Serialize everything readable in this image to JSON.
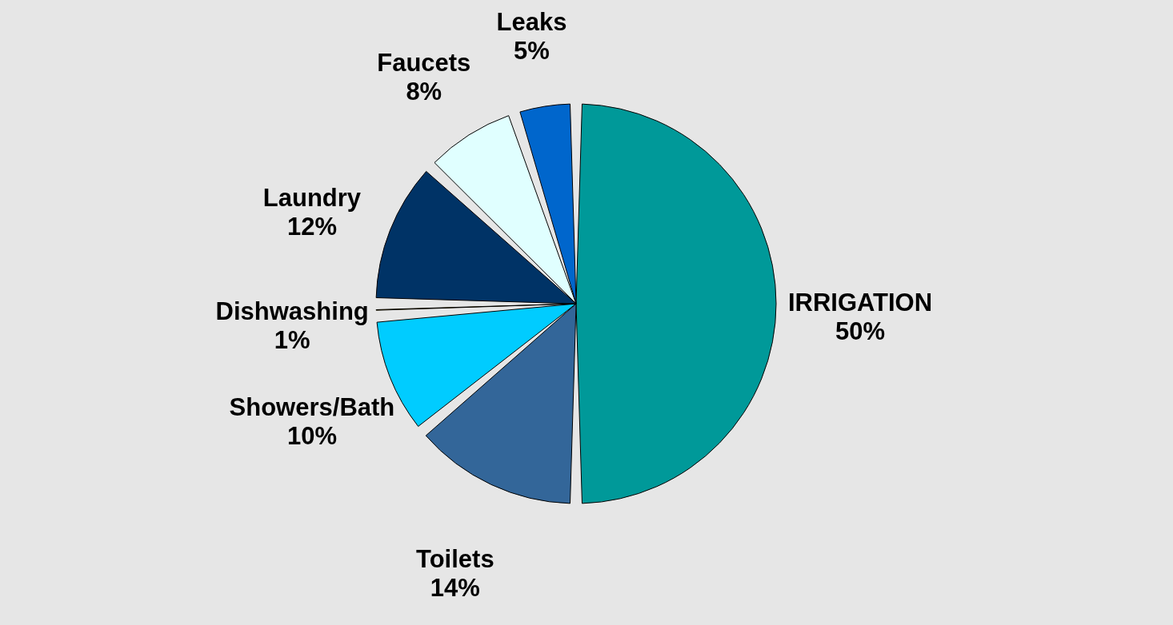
{
  "chart_data": {
    "type": "pie",
    "categories": [
      "IRRIGATION",
      "Toilets",
      "Showers/Bath",
      "Dishwashing",
      "Laundry",
      "Faucets",
      "Leaks"
    ],
    "values": [
      50,
      14,
      10,
      1,
      12,
      8,
      5
    ],
    "colors": [
      "#009999",
      "#336699",
      "#00ccff",
      "#ffcc00",
      "#003366",
      "#e0ffff",
      "#0066cc"
    ],
    "value_labels": [
      "50%",
      "14%",
      "10%",
      "1%",
      "12%",
      "8%",
      "5%"
    ],
    "legend": false
  }
}
